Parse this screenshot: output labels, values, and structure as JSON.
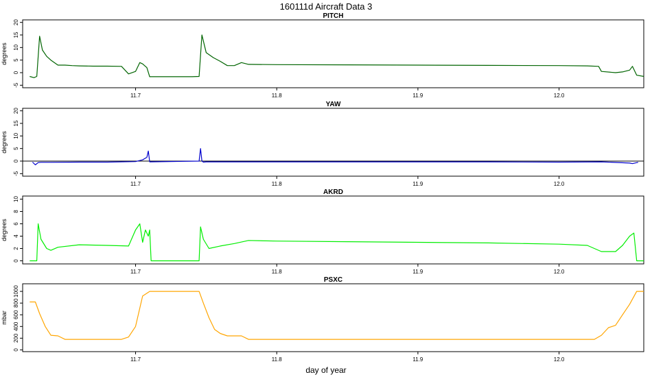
{
  "title": "160111d   Aircraft Data 3",
  "chart_data": {
    "type": "line",
    "xlabel": "day of year",
    "xlim": [
      11.62,
      12.06
    ],
    "x_ticks": [
      "11.7",
      "11.8",
      "11.9",
      "12.0"
    ],
    "panels": [
      {
        "title": "PITCH",
        "ylabel": "degrees",
        "ylim": [
          -6,
          21
        ],
        "y_ticks": [
          "-5",
          "0",
          "5",
          "10",
          "15",
          "20"
        ],
        "color": "#006400",
        "baseline": null,
        "x": [
          11.625,
          11.628,
          11.63,
          11.632,
          11.634,
          11.637,
          11.64,
          11.645,
          11.65,
          11.655,
          11.66,
          11.67,
          11.68,
          11.69,
          11.695,
          11.7,
          11.703,
          11.705,
          11.708,
          11.71,
          11.72,
          11.73,
          11.74,
          11.745,
          11.747,
          11.75,
          11.755,
          11.76,
          11.765,
          11.77,
          11.775,
          11.78,
          11.8,
          11.85,
          11.9,
          11.95,
          12.0,
          12.02,
          12.028,
          12.03,
          12.04,
          12.045,
          12.05,
          12.052,
          12.055,
          12.06
        ],
        "y": [
          -1.5,
          -2,
          -1.5,
          14.5,
          9,
          6.5,
          5,
          3,
          3,
          2.8,
          2.7,
          2.6,
          2.6,
          2.5,
          -0.5,
          0.5,
          4,
          3.5,
          2,
          -1.6,
          -1.6,
          -1.6,
          -1.6,
          -1.5,
          15,
          8,
          6,
          4.5,
          2.8,
          2.8,
          4,
          3.3,
          3.2,
          3.1,
          3.0,
          2.9,
          2.8,
          2.7,
          2.5,
          0.5,
          0,
          0.3,
          1,
          2.5,
          -1,
          -1.5
        ]
      },
      {
        "title": "YAW",
        "ylabel": "degrees",
        "ylim": [
          -6,
          21
        ],
        "y_ticks": [
          "-5",
          "0",
          "5",
          "10",
          "15",
          "20"
        ],
        "color": "#0000cd",
        "baseline": 0,
        "x": [
          11.627,
          11.629,
          11.631,
          11.633,
          11.64,
          11.66,
          11.68,
          11.7,
          11.705,
          11.708,
          11.709,
          11.71,
          11.745,
          11.746,
          11.747,
          11.748,
          11.75,
          11.8,
          11.85,
          11.9,
          11.95,
          12.0,
          12.03,
          12.05,
          12.052,
          12.056
        ],
        "y": [
          -0.4,
          -1.5,
          -0.6,
          -0.5,
          -0.5,
          -0.4,
          -0.4,
          -0.2,
          0.5,
          1.5,
          4,
          -0.3,
          0,
          5,
          0,
          -0.4,
          -0.3,
          -0.3,
          -0.3,
          -0.3,
          -0.3,
          -0.4,
          -0.3,
          -0.8,
          -1,
          -0.5
        ]
      },
      {
        "title": "AKRD",
        "ylabel": "degrees",
        "ylim": [
          -0.5,
          10.5
        ],
        "y_ticks": [
          "0",
          "2",
          "4",
          "6",
          "8",
          "10"
        ],
        "color": "#00ee00",
        "baseline": null,
        "x": [
          11.625,
          11.63,
          11.631,
          11.633,
          11.637,
          11.64,
          11.645,
          11.66,
          11.68,
          11.695,
          11.7,
          11.703,
          11.705,
          11.707,
          11.709,
          11.71,
          11.711,
          11.72,
          11.74,
          11.745,
          11.746,
          11.748,
          11.752,
          11.76,
          11.77,
          11.78,
          11.8,
          11.85,
          11.9,
          11.95,
          12.0,
          12.02,
          12.03,
          12.04,
          12.045,
          12.05,
          12.053,
          12.055,
          12.06
        ],
        "y": [
          0,
          0,
          6,
          3.5,
          2,
          1.7,
          2.2,
          2.6,
          2.5,
          2.4,
          5,
          6,
          3,
          5,
          4,
          5,
          0,
          0,
          0,
          0,
          5.5,
          3.5,
          2,
          2.4,
          2.8,
          3.3,
          3.2,
          3.1,
          3.0,
          2.9,
          2.7,
          2.5,
          1.5,
          1.5,
          2.5,
          4,
          4.5,
          0,
          0
        ]
      },
      {
        "title": "PSXC",
        "ylabel": "mbar",
        "ylim": [
          -30,
          1130
        ],
        "y_ticks": [
          "0",
          "200",
          "400",
          "600",
          "800",
          "1000"
        ],
        "color": "#ffa500",
        "baseline": null,
        "x": [
          11.625,
          11.629,
          11.632,
          11.636,
          11.64,
          11.645,
          11.65,
          11.66,
          11.68,
          11.69,
          11.695,
          11.7,
          11.705,
          11.71,
          11.73,
          11.745,
          11.748,
          11.752,
          11.756,
          11.76,
          11.765,
          11.77,
          11.775,
          11.78,
          11.8,
          11.85,
          11.9,
          11.95,
          12.0,
          12.025,
          12.03,
          12.035,
          12.04,
          12.045,
          12.05,
          12.055,
          12.06
        ],
        "y": [
          820,
          820,
          620,
          400,
          250,
          240,
          180,
          180,
          180,
          180,
          220,
          400,
          920,
          1000,
          1000,
          1000,
          800,
          550,
          350,
          280,
          240,
          240,
          240,
          180,
          180,
          180,
          180,
          180,
          180,
          180,
          250,
          380,
          420,
          600,
          780,
          1000,
          1000
        ]
      }
    ]
  }
}
